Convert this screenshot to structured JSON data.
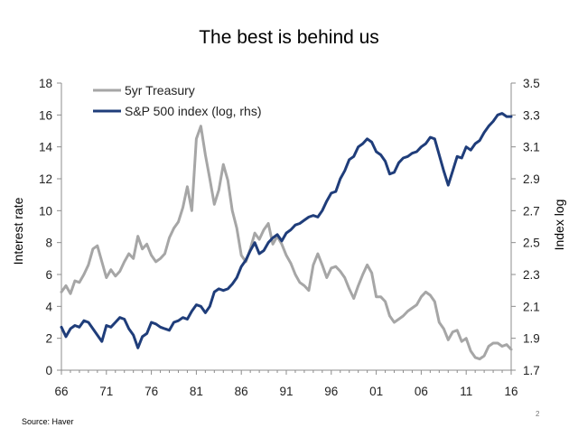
{
  "title": "The best is behind us",
  "source": "Source: Haver",
  "page_number": "2",
  "chart_data": {
    "type": "line",
    "title": "The best is behind us",
    "ylabel": "Interest rate",
    "y2label": "Index log",
    "xlim": [
      66,
      16
    ],
    "x_ticks": [
      "66",
      "71",
      "76",
      "81",
      "86",
      "91",
      "96",
      "01",
      "06",
      "11",
      "16"
    ],
    "ylim": [
      0,
      18
    ],
    "y_ticks": [
      "0",
      "2",
      "4",
      "6",
      "8",
      "10",
      "12",
      "14",
      "16",
      "18"
    ],
    "y2lim": [
      1.7,
      3.5
    ],
    "y2_ticks": [
      "1.7",
      "1.9",
      "2.1",
      "2.3",
      "2.5",
      "2.7",
      "2.9",
      "3.1",
      "3.3",
      "3.5"
    ],
    "legend_position": "top-left",
    "series": [
      {
        "name": "5yr Treasury",
        "axis": "left",
        "color": "#a6a6a6",
        "x": [
          1966.0,
          1966.5,
          1967.0,
          1967.5,
          1968.0,
          1968.5,
          1969.0,
          1969.5,
          1970.0,
          1970.5,
          1971.0,
          1971.5,
          1972.0,
          1972.5,
          1973.0,
          1973.5,
          1974.0,
          1974.5,
          1975.0,
          1975.5,
          1976.0,
          1976.5,
          1977.0,
          1977.5,
          1978.0,
          1978.5,
          1979.0,
          1979.5,
          1980.0,
          1980.5,
          1981.0,
          1981.5,
          1982.0,
          1982.5,
          1983.0,
          1983.5,
          1984.0,
          1984.5,
          1985.0,
          1985.5,
          1986.0,
          1986.5,
          1987.0,
          1987.5,
          1988.0,
          1988.5,
          1989.0,
          1989.5,
          1990.0,
          1990.5,
          1991.0,
          1991.5,
          1992.0,
          1992.5,
          1993.0,
          1993.5,
          1994.0,
          1994.5,
          1995.0,
          1995.5,
          1996.0,
          1996.5,
          1997.0,
          1997.5,
          1998.0,
          1998.5,
          1999.0,
          1999.5,
          2000.0,
          2000.5,
          2001.0,
          2001.5,
          2002.0,
          2002.5,
          2003.0,
          2003.5,
          2004.0,
          2004.5,
          2005.0,
          2005.5,
          2006.0,
          2006.5,
          2007.0,
          2007.5,
          2008.0,
          2008.5,
          2009.0,
          2009.5,
          2010.0,
          2010.5,
          2011.0,
          2011.5,
          2012.0,
          2012.5,
          2013.0,
          2013.5,
          2014.0,
          2014.5,
          2015.0,
          2015.5,
          2016.0
        ],
        "values": [
          4.9,
          5.3,
          4.8,
          5.6,
          5.5,
          6.0,
          6.6,
          7.6,
          7.8,
          6.8,
          5.8,
          6.3,
          5.9,
          6.2,
          6.8,
          7.3,
          7.0,
          8.4,
          7.6,
          7.9,
          7.2,
          6.8,
          7.0,
          7.3,
          8.3,
          8.9,
          9.3,
          10.2,
          11.5,
          10.0,
          14.5,
          15.3,
          13.5,
          12.0,
          10.4,
          11.3,
          12.9,
          11.9,
          10.0,
          8.9,
          7.2,
          6.8,
          7.6,
          8.6,
          8.2,
          8.8,
          9.2,
          7.9,
          8.4,
          7.9,
          7.2,
          6.7,
          6.0,
          5.5,
          5.3,
          5.0,
          6.6,
          7.3,
          6.6,
          5.8,
          6.4,
          6.5,
          6.2,
          5.8,
          5.1,
          4.5,
          5.3,
          6.0,
          6.6,
          6.1,
          4.6,
          4.6,
          4.3,
          3.4,
          3.0,
          3.2,
          3.4,
          3.7,
          3.9,
          4.1,
          4.6,
          4.9,
          4.7,
          4.3,
          3.0,
          2.6,
          1.9,
          2.4,
          2.5,
          1.8,
          2.0,
          1.2,
          0.8,
          0.7,
          0.9,
          1.5,
          1.7,
          1.7,
          1.5,
          1.6,
          1.3
        ]
      },
      {
        "name": "S&P 500 index (log, rhs)",
        "axis": "right",
        "color": "#1f3d7a",
        "x": [
          1966.0,
          1966.5,
          1967.0,
          1967.5,
          1968.0,
          1968.5,
          1969.0,
          1969.5,
          1970.0,
          1970.5,
          1971.0,
          1971.5,
          1972.0,
          1972.5,
          1973.0,
          1973.5,
          1974.0,
          1974.5,
          1975.0,
          1975.5,
          1976.0,
          1976.5,
          1977.0,
          1977.5,
          1978.0,
          1978.5,
          1979.0,
          1979.5,
          1980.0,
          1980.5,
          1981.0,
          1981.5,
          1982.0,
          1982.5,
          1983.0,
          1983.5,
          1984.0,
          1984.5,
          1985.0,
          1985.5,
          1986.0,
          1986.5,
          1987.0,
          1987.5,
          1988.0,
          1988.5,
          1989.0,
          1989.5,
          1990.0,
          1990.5,
          1991.0,
          1991.5,
          1992.0,
          1992.5,
          1993.0,
          1993.5,
          1994.0,
          1994.5,
          1995.0,
          1995.5,
          1996.0,
          1996.5,
          1997.0,
          1997.5,
          1998.0,
          1998.5,
          1999.0,
          1999.5,
          2000.0,
          2000.5,
          2001.0,
          2001.5,
          2002.0,
          2002.5,
          2003.0,
          2003.5,
          2004.0,
          2004.5,
          2005.0,
          2005.5,
          2006.0,
          2006.5,
          2007.0,
          2007.5,
          2008.0,
          2008.5,
          2009.0,
          2009.5,
          2010.0,
          2010.5,
          2011.0,
          2011.5,
          2012.0,
          2012.5,
          2013.0,
          2013.5,
          2014.0,
          2014.5,
          2015.0,
          2015.5,
          2016.0
        ],
        "values": [
          1.97,
          1.91,
          1.96,
          1.98,
          1.97,
          2.01,
          2.0,
          1.96,
          1.92,
          1.88,
          1.98,
          1.97,
          2.0,
          2.03,
          2.02,
          1.96,
          1.92,
          1.84,
          1.91,
          1.93,
          2.0,
          1.99,
          1.97,
          1.96,
          1.95,
          2.0,
          2.01,
          2.03,
          2.02,
          2.07,
          2.11,
          2.1,
          2.06,
          2.1,
          2.19,
          2.21,
          2.2,
          2.21,
          2.24,
          2.28,
          2.35,
          2.39,
          2.45,
          2.5,
          2.43,
          2.45,
          2.5,
          2.53,
          2.55,
          2.51,
          2.56,
          2.58,
          2.61,
          2.62,
          2.64,
          2.66,
          2.67,
          2.66,
          2.7,
          2.76,
          2.81,
          2.82,
          2.9,
          2.95,
          3.02,
          3.04,
          3.1,
          3.12,
          3.15,
          3.13,
          3.07,
          3.05,
          3.01,
          2.93,
          2.94,
          3.0,
          3.03,
          3.04,
          3.06,
          3.07,
          3.1,
          3.12,
          3.16,
          3.15,
          3.05,
          2.95,
          2.86,
          2.95,
          3.04,
          3.03,
          3.1,
          3.08,
          3.12,
          3.14,
          3.19,
          3.23,
          3.26,
          3.3,
          3.31,
          3.29,
          3.29
        ]
      }
    ]
  }
}
